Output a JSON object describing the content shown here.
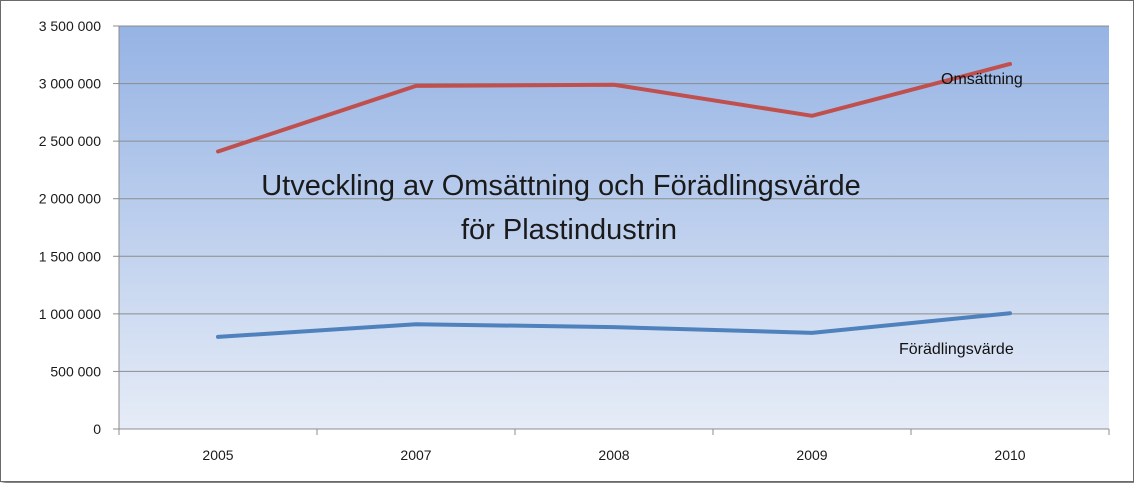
{
  "chart_data": {
    "type": "line",
    "title_lines": [
      "Utveckling av Omsättning och Förädlingsvärde",
      "för Plastindustrin"
    ],
    "categories": [
      "2005",
      "2007",
      "2008",
      "2009",
      "2010"
    ],
    "series": [
      {
        "name": "Omsättning",
        "color": "#c0504d",
        "values": [
          2410000,
          2980000,
          2990000,
          2720000,
          3170000
        ]
      },
      {
        "name": "Förädlingsvärde",
        "color": "#4f81bd",
        "values": [
          800000,
          910000,
          885000,
          835000,
          1005000
        ]
      }
    ],
    "ylim": [
      0,
      3500000
    ],
    "yticks": [
      "0",
      "500 000",
      "1 000 000",
      "1 500 000",
      "2 000 000",
      "2 500 000",
      "3 000 000",
      "3 500 000"
    ],
    "ytick_values": [
      0,
      500000,
      1000000,
      1500000,
      2000000,
      2500000,
      3000000,
      3500000
    ],
    "grid": true,
    "legend": "inline labels next to lines",
    "plot_background": [
      "#95b3e4",
      "#e6ecf7"
    ]
  }
}
